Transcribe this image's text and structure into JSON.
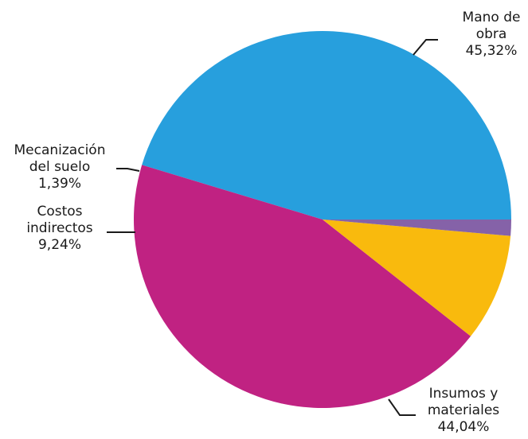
{
  "chart_data": {
    "type": "pie",
    "slices": [
      {
        "label_lines": [
          "Mano de",
          "obra"
        ],
        "value": 45.32,
        "value_text": "45,32%",
        "color": "#279FDD"
      },
      {
        "label_lines": [
          "Insumos y",
          "materiales"
        ],
        "value": 44.04,
        "value_text": "44,04%",
        "color": "#C02282"
      },
      {
        "label_lines": [
          "Costos",
          "indirectos"
        ],
        "value": 9.24,
        "value_text": "9,24%",
        "color": "#F9BA0D"
      },
      {
        "label_lines": [
          "Mecanización",
          "del suelo"
        ],
        "value": 1.39,
        "value_text": "1,39%",
        "color": "#8562A8"
      }
    ],
    "start_direction": "3 o'clock",
    "slice_order": "counterclockwise",
    "legend": "none"
  }
}
